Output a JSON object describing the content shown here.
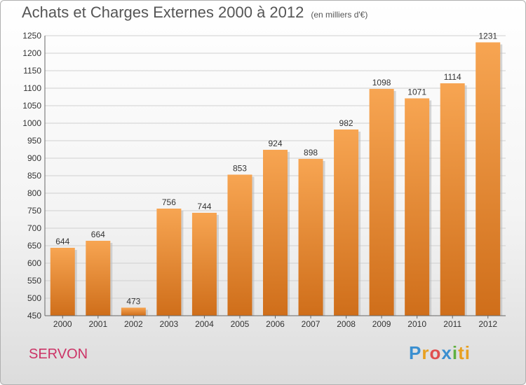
{
  "header": {
    "title": "Achats et Charges Externes 2000 à 2012",
    "unit": "(en milliers d'€)"
  },
  "commune": "SERVON",
  "logo": {
    "letters": [
      "P",
      "r",
      "o",
      "x",
      "i",
      "ti"
    ]
  },
  "chart_data": {
    "type": "bar",
    "title": "Achats et Charges Externes 2000 à 2012",
    "subtitle": "(en milliers d'€)",
    "categories": [
      "2000",
      "2001",
      "2002",
      "2003",
      "2004",
      "2005",
      "2006",
      "2007",
      "2008",
      "2009",
      "2010",
      "2011",
      "2012"
    ],
    "values": [
      644,
      664,
      473,
      756,
      744,
      853,
      924,
      898,
      982,
      1098,
      1071,
      1114,
      1231
    ],
    "ylim": [
      450,
      1250
    ],
    "yticks": [
      450,
      500,
      550,
      600,
      650,
      700,
      750,
      800,
      850,
      900,
      950,
      1000,
      1050,
      1100,
      1150,
      1200,
      1250
    ],
    "grid": true,
    "colors": {
      "bar_top": "#f7a552",
      "bar_bottom": "#cf6e1a",
      "grid": "#d0d0d0"
    }
  }
}
